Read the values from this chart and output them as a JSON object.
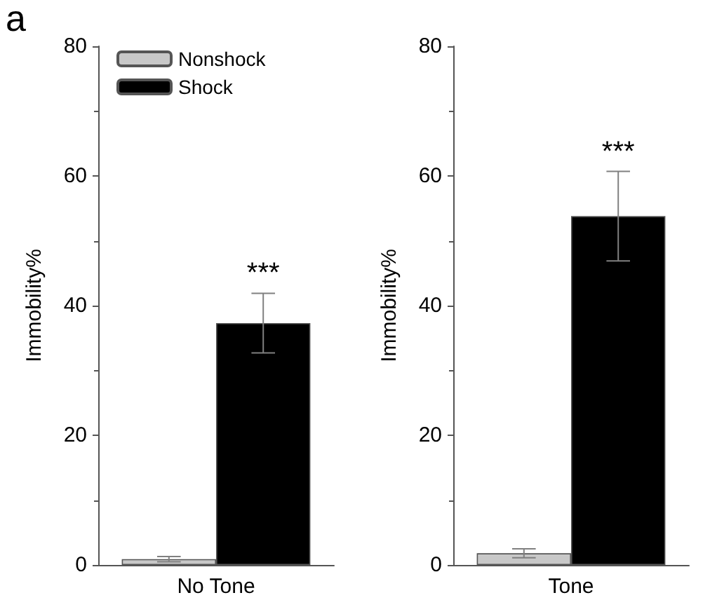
{
  "chart_data": [
    {
      "type": "bar",
      "title": "a",
      "categories": [
        "No Tone"
      ],
      "ylabel": "Immobility%",
      "ylim": [
        0,
        80
      ],
      "yticks": [
        0,
        20,
        40,
        60,
        80
      ],
      "legend": "top left",
      "grid": false,
      "series": [
        {
          "name": "Nonshock",
          "color": "#c8c8c8",
          "values": [
            0.9
          ],
          "errors": [
            0.4
          ]
        },
        {
          "name": "Shock",
          "color": "#000000",
          "values": [
            37.3
          ],
          "errors": [
            4.6
          ]
        }
      ],
      "annotations": [
        "***"
      ]
    },
    {
      "type": "bar",
      "categories": [
        "Tone"
      ],
      "ylabel": "Immobility%",
      "ylim": [
        0,
        80
      ],
      "yticks": [
        0,
        20,
        40,
        60,
        80
      ],
      "legend": false,
      "grid": false,
      "series": [
        {
          "color": "#c8c8c8",
          "values": [
            1.8
          ],
          "errors": [
            0.7
          ]
        },
        {
          "color": "#000000",
          "values": [
            53.8
          ],
          "errors": [
            6.9
          ]
        }
      ],
      "annotations": [
        "***"
      ]
    }
  ]
}
